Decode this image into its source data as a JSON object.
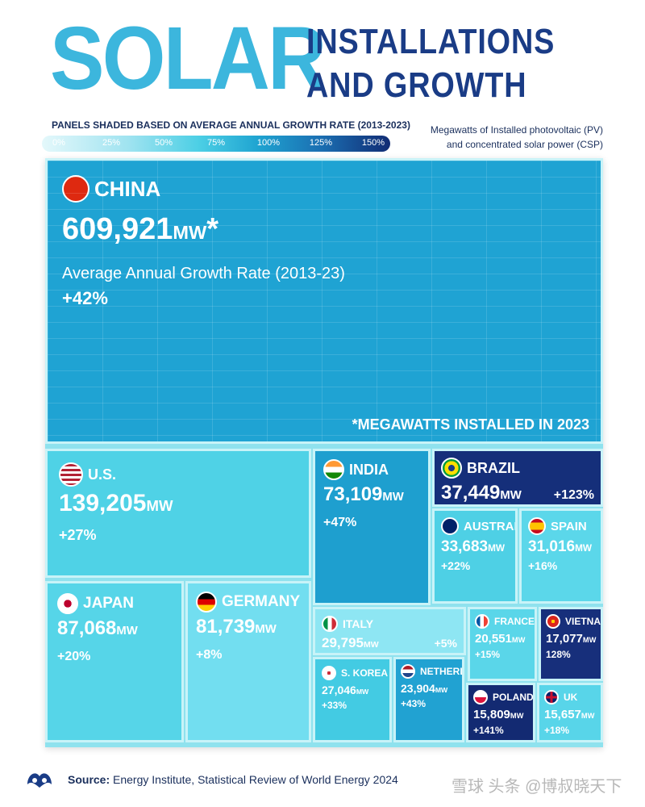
{
  "title": {
    "big": "SOLAR",
    "line1": "INSTALLATIONS",
    "line2": "AND GROWTH"
  },
  "subtitle": "PANELS SHADED BASED ON AVERAGE ANNUAL GROWTH RATE (2013-2023)",
  "legend_ticks": [
    "0%",
    "25%",
    "50%",
    "75%",
    "100%",
    "125%",
    "150%"
  ],
  "note": {
    "line1": "Megawatts of Installed photovoltaic (PV)",
    "line2": "and concentrated solar power (CSP)"
  },
  "china_extra": {
    "growth_label": "Average Annual Growth Rate (2013-23)",
    "footnote": "*MEGAWATTS INSTALLED IN 2023",
    "asterisk": "*"
  },
  "colors": {
    "title_light": "#3cb6dd",
    "title_dark": "#1a3c86",
    "navy": "#112c74"
  },
  "chart_data": {
    "type": "treemap",
    "title": "SOLAR INSTALLATIONS AND GROWTH",
    "value_unit": "MW",
    "color_metric": "Average annual growth rate 2013-2023",
    "items": [
      {
        "country": "CHINA",
        "value": 609921,
        "value_text": "609,921",
        "growth": 42,
        "growth_text": "+42%",
        "color": "#1fa3d3",
        "flag": "flag-china-icon"
      },
      {
        "country": "U.S.",
        "value": 139205,
        "value_text": "139,205",
        "growth": 27,
        "growth_text": "+27%",
        "color": "#4fd2e6",
        "flag": "flag-us-icon"
      },
      {
        "country": "INDIA",
        "value": 73109,
        "value_text": "73,109",
        "growth": 47,
        "growth_text": "+47%",
        "color": "#1e9fcf",
        "flag": "flag-india-icon"
      },
      {
        "country": "BRAZIL",
        "value": 37449,
        "value_text": "37,449",
        "growth": 123,
        "growth_text": "+123%",
        "color": "#152f7a",
        "flag": "flag-brazil-icon"
      },
      {
        "country": "AUSTRALIA",
        "value": 33683,
        "value_text": "33,683",
        "growth": 22,
        "growth_text": "+22%",
        "color": "#4ed0e5",
        "flag": "flag-australia-icon"
      },
      {
        "country": "SPAIN",
        "value": 31016,
        "value_text": "31,016",
        "growth": 16,
        "growth_text": "+16%",
        "color": "#5bd7ea",
        "flag": "flag-spain-icon"
      },
      {
        "country": "JAPAN",
        "value": 87068,
        "value_text": "87,068",
        "growth": 20,
        "growth_text": "+20%",
        "color": "#56d5e8",
        "flag": "flag-japan-icon"
      },
      {
        "country": "GERMANY",
        "value": 81739,
        "value_text": "81,739",
        "growth": 8,
        "growth_text": "+8%",
        "color": "#72def0",
        "flag": "flag-germany-icon"
      },
      {
        "country": "ITALY",
        "value": 29795,
        "value_text": "29,795",
        "growth": 5,
        "growth_text": "+5%",
        "color": "#8ee6f3",
        "flag": "flag-italy-icon"
      },
      {
        "country": "FRANCE",
        "value": 20551,
        "value_text": "20,551",
        "growth": 15,
        "growth_text": "+15%",
        "color": "#5ad6e9",
        "flag": "flag-france-icon"
      },
      {
        "country": "VIETNAM",
        "value": 17077,
        "value_text": "17,077",
        "growth": 128,
        "growth_text": "128%",
        "color": "#172f7b",
        "flag": "flag-vietnam-icon"
      },
      {
        "country": "S. KOREA",
        "value": 27046,
        "value_text": "27,046",
        "growth": 33,
        "growth_text": "+33%",
        "color": "#43cbe3",
        "flag": "flag-korea-icon"
      },
      {
        "country": "NETHERLANDS",
        "value": 23904,
        "value_text": "23,904",
        "growth": 43,
        "growth_text": "+43%",
        "color": "#21a2d2",
        "flag": "flag-netherlands-icon"
      },
      {
        "country": "POLAND",
        "value": 15809,
        "value_text": "15,809",
        "growth": 141,
        "growth_text": "+141%",
        "color": "#132a72",
        "flag": "flag-poland-icon"
      },
      {
        "country": "UK",
        "value": 15657,
        "value_text": "15,657",
        "growth": 18,
        "growth_text": "+18%",
        "color": "#58d5e9",
        "flag": "flag-uk-icon"
      }
    ]
  },
  "source": {
    "label": "Source:",
    "text": "Energy Institute, Statistical Review of World Energy 2024"
  },
  "watermark": "雪球 头条 @博叔晓天下"
}
